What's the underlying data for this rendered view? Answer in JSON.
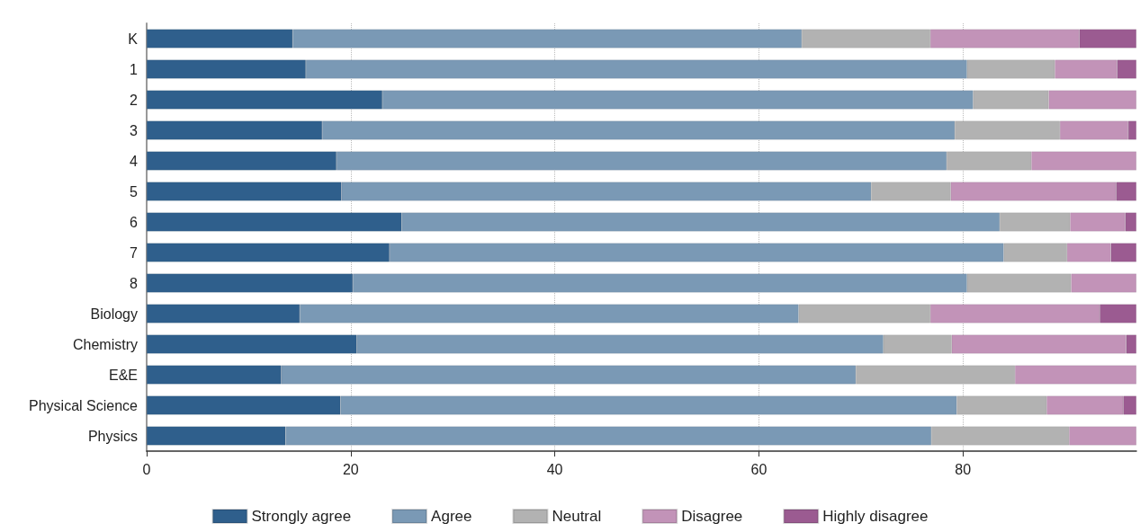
{
  "chart_data": {
    "type": "bar",
    "orientation": "horizontal",
    "stacked": true,
    "categories": [
      "K",
      "1",
      "2",
      "3",
      "4",
      "5",
      "6",
      "7",
      "8",
      "Biology",
      "Chemistry",
      "E&E",
      "Physical Science",
      "Physics"
    ],
    "series": [
      {
        "name": "Strongly agree",
        "color": "#2f5f8c",
        "values": [
          14.3,
          15.6,
          23.1,
          17.2,
          18.6,
          19.1,
          25.0,
          23.8,
          20.2,
          15.0,
          20.6,
          13.2,
          19.0,
          13.6
        ]
      },
      {
        "name": "Agree",
        "color": "#7a99b5",
        "values": [
          49.9,
          64.8,
          57.9,
          62.0,
          59.8,
          51.9,
          58.6,
          60.2,
          60.2,
          48.9,
          51.6,
          56.3,
          60.4,
          63.3
        ]
      },
      {
        "name": "Neutral",
        "color": "#b2b2b2",
        "values": [
          12.6,
          8.6,
          7.4,
          10.3,
          8.3,
          7.8,
          6.9,
          6.2,
          10.2,
          12.9,
          6.7,
          15.6,
          8.8,
          13.5
        ]
      },
      {
        "name": "Disagree",
        "color": "#c293b8",
        "values": [
          14.6,
          6.1,
          8.6,
          6.7,
          10.3,
          16.2,
          5.4,
          4.3,
          6.4,
          16.6,
          17.1,
          11.9,
          7.5,
          6.6
        ]
      },
      {
        "name": "Highly disagree",
        "color": "#9b5b91",
        "values": [
          5.6,
          1.9,
          null,
          0.8,
          null,
          2.0,
          1.1,
          2.5,
          null,
          3.6,
          1.0,
          null,
          1.3,
          null
        ]
      }
    ],
    "xlim": [
      0,
      97
    ],
    "xticks": [
      0,
      20,
      40,
      60,
      80
    ],
    "grid": "x",
    "legend": "bottom"
  }
}
